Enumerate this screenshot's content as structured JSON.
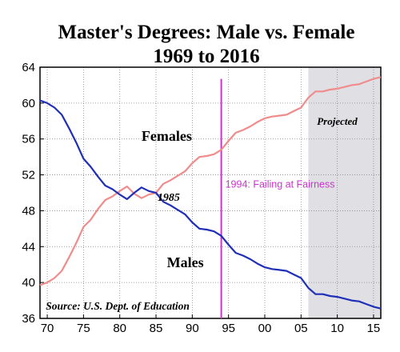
{
  "chart_data": {
    "type": "line",
    "title": "Master's Degrees: Male vs. Female",
    "subtitle": "1969 to 2016",
    "xlabel": "",
    "ylabel": "",
    "xlim": [
      1969,
      2016
    ],
    "ylim": [
      36,
      64
    ],
    "x_ticks": [
      {
        "value": 1970,
        "label": "70"
      },
      {
        "value": 1975,
        "label": "75"
      },
      {
        "value": 1980,
        "label": "80"
      },
      {
        "value": 1985,
        "label": "85"
      },
      {
        "value": 1990,
        "label": "90"
      },
      {
        "value": 1995,
        "label": "95"
      },
      {
        "value": 2000,
        "label": "00"
      },
      {
        "value": 2005,
        "label": "05"
      },
      {
        "value": 2010,
        "label": "10"
      },
      {
        "value": 2015,
        "label": "15"
      }
    ],
    "y_ticks": [
      36,
      40,
      44,
      48,
      52,
      56,
      60,
      64
    ],
    "grid": true,
    "projected_region": {
      "label": "Projected",
      "x_start": 2006,
      "x_end": 2016,
      "color": "#e0e0e4"
    },
    "vertical_marker": {
      "x": 1994,
      "label": "1994:  Failing at Fairness",
      "color": "#cc33cc"
    },
    "crossover_label": "1985",
    "source": "Source: U.S. Dept. of Education",
    "series": [
      {
        "name": "Females",
        "color": "#f08c8c",
        "x": [
          1969,
          1970,
          1971,
          1972,
          1973,
          1974,
          1975,
          1976,
          1977,
          1978,
          1979,
          1980,
          1981,
          1982,
          1983,
          1984,
          1985,
          1986,
          1987,
          1988,
          1989,
          1990,
          1991,
          1992,
          1993,
          1994,
          1995,
          1996,
          1997,
          1998,
          1999,
          2000,
          2001,
          2002,
          2003,
          2004,
          2005,
          2006,
          2007,
          2008,
          2009,
          2010,
          2011,
          2012,
          2013,
          2014,
          2015,
          2016
        ],
        "values": [
          39.7,
          40.0,
          40.5,
          41.3,
          42.8,
          44.4,
          46.2,
          47.0,
          48.2,
          49.2,
          49.6,
          50.2,
          50.7,
          49.9,
          49.4,
          49.8,
          50.0,
          51.0,
          51.4,
          51.9,
          52.4,
          53.3,
          54.0,
          54.1,
          54.3,
          54.8,
          55.8,
          56.7,
          57.0,
          57.4,
          57.9,
          58.3,
          58.5,
          58.6,
          58.7,
          59.1,
          59.5,
          60.6,
          61.3,
          61.3,
          61.5,
          61.6,
          61.8,
          62.0,
          62.1,
          62.4,
          62.7,
          62.9
        ]
      },
      {
        "name": "Males",
        "color": "#1f2fb8",
        "x": [
          1969,
          1970,
          1971,
          1972,
          1973,
          1974,
          1975,
          1976,
          1977,
          1978,
          1979,
          1980,
          1981,
          1982,
          1983,
          1984,
          1985,
          1986,
          1987,
          1988,
          1989,
          1990,
          1991,
          1992,
          1993,
          1994,
          1995,
          1996,
          1997,
          1998,
          1999,
          2000,
          2001,
          2002,
          2003,
          2004,
          2005,
          2006,
          2007,
          2008,
          2009,
          2010,
          2011,
          2012,
          2013,
          2014,
          2015,
          2016
        ],
        "values": [
          60.3,
          60.0,
          59.5,
          58.7,
          57.2,
          55.6,
          53.8,
          52.9,
          51.8,
          50.8,
          50.4,
          49.8,
          49.3,
          50.0,
          50.6,
          50.2,
          50.0,
          49.0,
          48.6,
          48.1,
          47.6,
          46.7,
          46.0,
          45.9,
          45.7,
          45.2,
          44.2,
          43.3,
          43.0,
          42.6,
          42.1,
          41.7,
          41.5,
          41.4,
          41.3,
          40.9,
          40.5,
          39.4,
          38.7,
          38.7,
          38.5,
          38.4,
          38.2,
          38.0,
          37.9,
          37.6,
          37.3,
          37.1
        ]
      }
    ]
  }
}
